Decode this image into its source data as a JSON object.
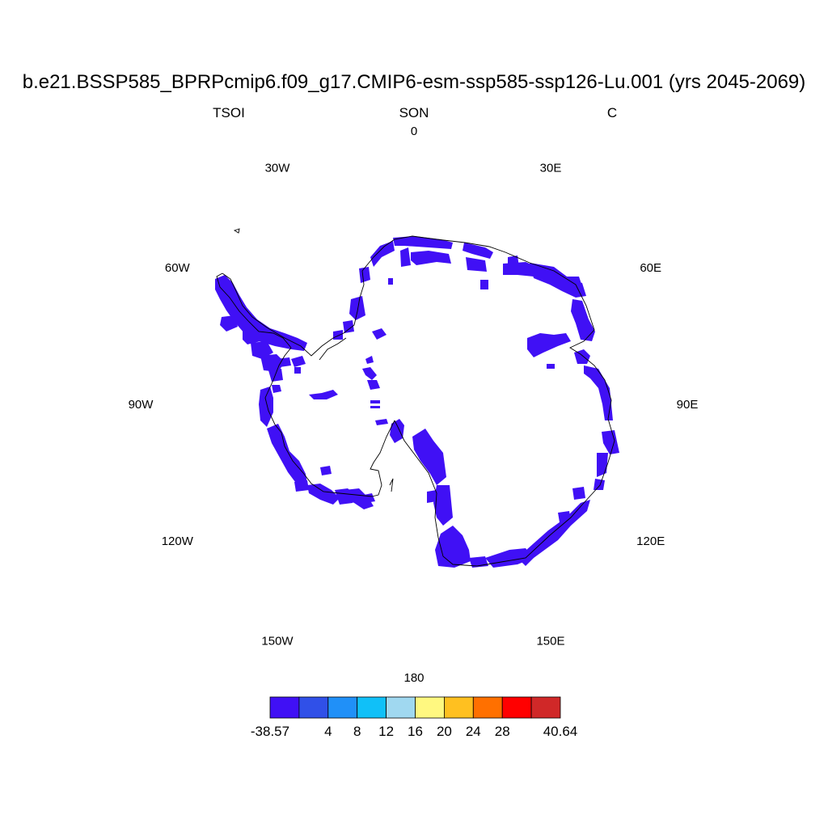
{
  "header": {
    "title": "b.e21.BSSP585_BPRPcmip6.f09_g17.CMIP6-esm-ssp585-ssp126-Lu.001 (yrs 2045-2069)",
    "variable": "TSOI",
    "season": "SON",
    "units": "C"
  },
  "map": {
    "projection": "south-polar-stereographic",
    "fill_color": "#4010F5",
    "longitude_labels": [
      {
        "text": "0",
        "lon": 0
      },
      {
        "text": "30E",
        "lon": 30
      },
      {
        "text": "60E",
        "lon": 60
      },
      {
        "text": "90E",
        "lon": 90
      },
      {
        "text": "120E",
        "lon": 120
      },
      {
        "text": "150E",
        "lon": 150
      },
      {
        "text": "180",
        "lon": 180
      },
      {
        "text": "150W",
        "lon": -150
      },
      {
        "text": "120W",
        "lon": -120
      },
      {
        "text": "90W",
        "lon": -90
      },
      {
        "text": "60W",
        "lon": -60
      },
      {
        "text": "30W",
        "lon": -30
      }
    ]
  },
  "colorbar": {
    "colors": [
      "#4010F5",
      "#3050E8",
      "#2090F8",
      "#10C0F8",
      "#A0D8F0",
      "#FFF880",
      "#FFC020",
      "#FF7000",
      "#FF0000",
      "#D02828"
    ],
    "labels": [
      {
        "text": "-38.57",
        "boundary": 0
      },
      {
        "text": "4",
        "boundary": 2
      },
      {
        "text": "8",
        "boundary": 3
      },
      {
        "text": "12",
        "boundary": 4
      },
      {
        "text": "16",
        "boundary": 5
      },
      {
        "text": "20",
        "boundary": 6
      },
      {
        "text": "24",
        "boundary": 7
      },
      {
        "text": "28",
        "boundary": 8
      },
      {
        "text": "40.64",
        "boundary": 10
      }
    ]
  }
}
